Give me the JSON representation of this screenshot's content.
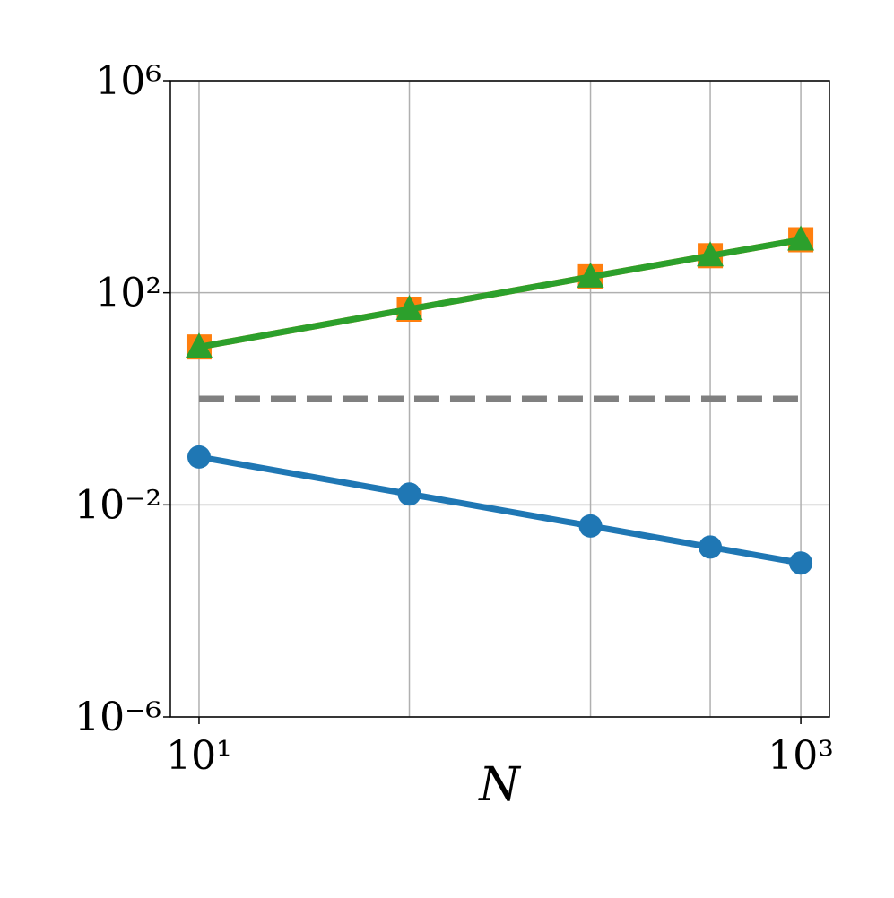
{
  "chart_data": {
    "type": "line",
    "x_label": "N",
    "x": [
      10,
      50,
      200,
      500,
      1000
    ],
    "series": [
      {
        "color": "#1f77b4",
        "marker": "circle",
        "linestyle": "solid",
        "values": [
          0.08,
          0.016,
          0.004,
          0.0016,
          0.0008
        ]
      },
      {
        "color": "#808080",
        "marker": "none",
        "linestyle": "dashed",
        "values": [
          1,
          1,
          1,
          1,
          1
        ]
      },
      {
        "color": "#ff7f0e",
        "marker": "square",
        "linestyle": "solid",
        "values": [
          9.5,
          49,
          200,
          500,
          1000
        ]
      },
      {
        "color": "#2ca02c",
        "marker": "triangle",
        "linestyle": "solid",
        "values": [
          9.5,
          49,
          200,
          500,
          1000
        ]
      }
    ],
    "xscale": "log",
    "yscale": "log",
    "xlim": [
      8.03,
      1245
    ],
    "ylim": [
      1e-06,
      1000000
    ],
    "xticks": [
      {
        "value": 10,
        "label": "10¹"
      },
      {
        "value": 1000,
        "label": "10³"
      }
    ],
    "yticks": [
      {
        "value": 1e-06,
        "label": "10⁻⁶"
      },
      {
        "value": 0.01,
        "label": "10⁻²"
      },
      {
        "value": 100,
        "label": "10²"
      },
      {
        "value": 1000000,
        "label": "10⁶"
      }
    ],
    "grid": true
  }
}
